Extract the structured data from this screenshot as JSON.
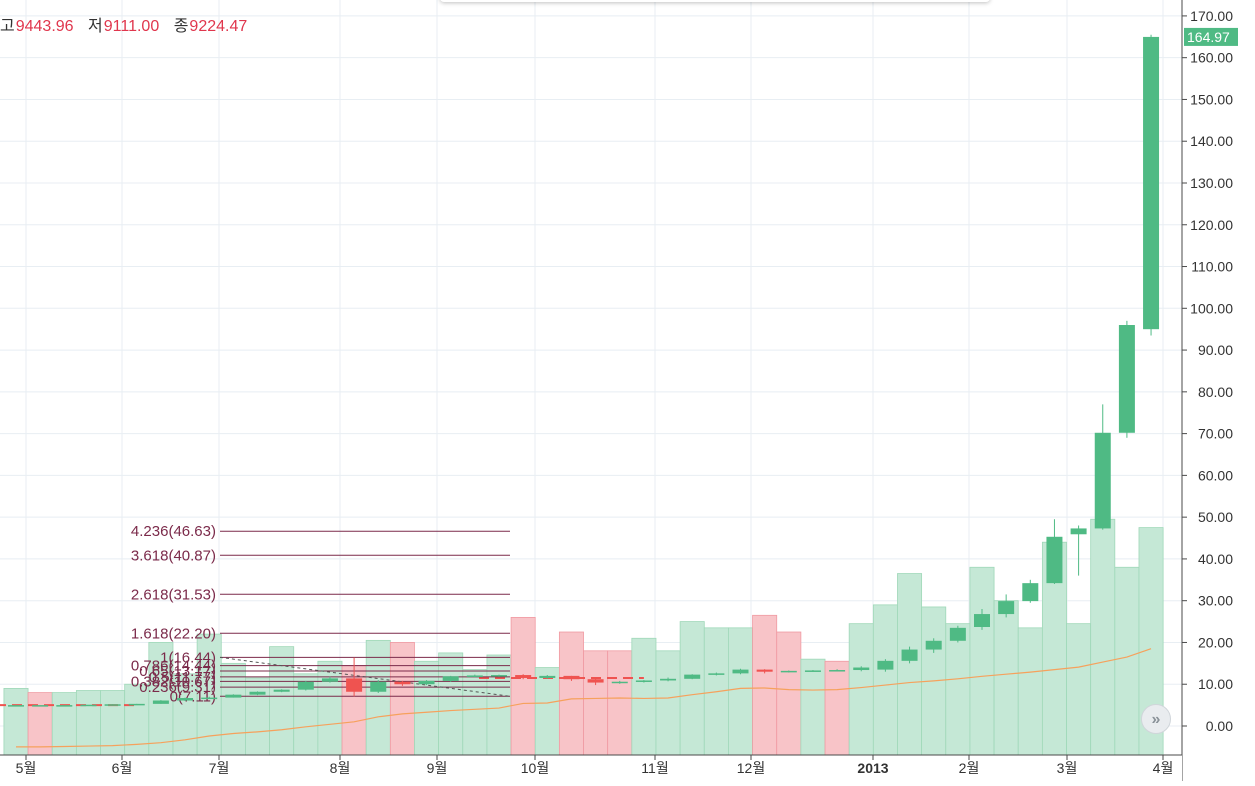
{
  "ohlc_header": {
    "high_label": "고",
    "high_value": "9443.96",
    "low_label": "저",
    "low_value": "9111.00",
    "close_label": "종",
    "close_value": "9224.47"
  },
  "last_price_tag": "164.97",
  "scroll_button_glyph": "»",
  "colors": {
    "up": "#4fba84",
    "down": "#ef5350",
    "volume_up": "#c5e8d6",
    "volume_down": "#f8c4c8",
    "ma": "#f6a15c",
    "fib": "#7b2a4a",
    "fib_text": "#7b2a4a",
    "last_price": "#4fba84",
    "grid": "#e8eef3"
  },
  "chart_data": {
    "type": "candlestick",
    "y_axis": {
      "min": -5,
      "max": 172,
      "ticks": [
        "170.00",
        "160.00",
        "150.00",
        "140.00",
        "130.00",
        "120.00",
        "110.00",
        "100.00",
        "90.00",
        "80.00",
        "70.00",
        "60.00",
        "50.00",
        "40.00",
        "30.00",
        "20.00",
        "10.00",
        "0.00"
      ]
    },
    "x_axis_labels": [
      {
        "label": "5월",
        "bold": false
      },
      {
        "label": "6월",
        "bold": false
      },
      {
        "label": "7월",
        "bold": false
      },
      {
        "label": "8월",
        "bold": false
      },
      {
        "label": "9월",
        "bold": false
      },
      {
        "label": "10월",
        "bold": false
      },
      {
        "label": "11월",
        "bold": false
      },
      {
        "label": "12월",
        "bold": false
      },
      {
        "label": "2013",
        "bold": true
      },
      {
        "label": "2월",
        "bold": false
      },
      {
        "label": "3월",
        "bold": false
      },
      {
        "label": "4월",
        "bold": false
      }
    ],
    "candles": [
      {
        "o": 5.0,
        "h": 5.0,
        "l": 5.0,
        "c": 5.0
      },
      {
        "o": 5.0,
        "h": 5.0,
        "l": 5.0,
        "c": 5.0
      },
      {
        "o": 5.0,
        "h": 5.0,
        "l": 5.0,
        "c": 5.0
      },
      {
        "o": 5.0,
        "h": 5.0,
        "l": 5.0,
        "c": 5.1
      },
      {
        "o": 5.1,
        "h": 5.2,
        "l": 5.1,
        "c": 5.2
      },
      {
        "o": 5.2,
        "h": 5.3,
        "l": 5.2,
        "c": 5.3
      },
      {
        "o": 5.3,
        "h": 6.2,
        "l": 5.3,
        "c": 6.1
      },
      {
        "o": 6.1,
        "h": 6.8,
        "l": 6.0,
        "c": 6.7
      },
      {
        "o": 6.7,
        "h": 7.0,
        "l": 6.5,
        "c": 6.8
      },
      {
        "o": 6.8,
        "h": 7.6,
        "l": 6.8,
        "c": 7.5
      },
      {
        "o": 7.5,
        "h": 8.3,
        "l": 7.4,
        "c": 8.2
      },
      {
        "o": 8.2,
        "h": 8.8,
        "l": 8.1,
        "c": 8.7
      },
      {
        "o": 8.7,
        "h": 10.8,
        "l": 8.5,
        "c": 10.6
      },
      {
        "o": 10.6,
        "h": 11.8,
        "l": 10.4,
        "c": 11.4
      },
      {
        "o": 11.4,
        "h": 16.4,
        "l": 7.1,
        "c": 8.2
      },
      {
        "o": 8.2,
        "h": 11.0,
        "l": 7.9,
        "c": 10.6
      },
      {
        "o": 10.6,
        "h": 10.8,
        "l": 9.6,
        "c": 10.0
      },
      {
        "o": 10.0,
        "h": 11.0,
        "l": 9.8,
        "c": 10.8
      },
      {
        "o": 10.8,
        "h": 12.0,
        "l": 10.6,
        "c": 11.9
      },
      {
        "o": 11.9,
        "h": 12.3,
        "l": 11.7,
        "c": 12.1
      },
      {
        "o": 12.1,
        "h": 12.3,
        "l": 11.8,
        "c": 12.2
      },
      {
        "o": 12.2,
        "h": 12.4,
        "l": 11.2,
        "c": 11.5
      },
      {
        "o": 11.5,
        "h": 12.2,
        "l": 11.3,
        "c": 12.0
      },
      {
        "o": 12.0,
        "h": 12.0,
        "l": 10.8,
        "c": 11.2
      },
      {
        "o": 11.2,
        "h": 11.6,
        "l": 9.8,
        "c": 10.4
      },
      {
        "o": 10.4,
        "h": 10.8,
        "l": 10.1,
        "c": 10.6
      },
      {
        "o": 10.6,
        "h": 11.0,
        "l": 10.4,
        "c": 10.9
      },
      {
        "o": 10.9,
        "h": 11.6,
        "l": 10.7,
        "c": 11.3
      },
      {
        "o": 11.3,
        "h": 12.4,
        "l": 11.2,
        "c": 12.3
      },
      {
        "o": 12.3,
        "h": 12.8,
        "l": 12.1,
        "c": 12.6
      },
      {
        "o": 12.6,
        "h": 13.7,
        "l": 12.4,
        "c": 13.5
      },
      {
        "o": 13.5,
        "h": 13.6,
        "l": 12.6,
        "c": 13.0
      },
      {
        "o": 13.0,
        "h": 13.3,
        "l": 12.8,
        "c": 13.2
      },
      {
        "o": 13.2,
        "h": 13.4,
        "l": 13.0,
        "c": 13.3
      },
      {
        "o": 13.3,
        "h": 13.6,
        "l": 13.2,
        "c": 13.4
      },
      {
        "o": 13.4,
        "h": 14.3,
        "l": 13.1,
        "c": 14.0
      },
      {
        "o": 13.5,
        "h": 16.0,
        "l": 13.0,
        "c": 15.6
      },
      {
        "o": 15.6,
        "h": 19.0,
        "l": 15.0,
        "c": 18.3
      },
      {
        "o": 18.3,
        "h": 21.0,
        "l": 17.5,
        "c": 20.4
      },
      {
        "o": 20.4,
        "h": 24.0,
        "l": 20.0,
        "c": 23.5
      },
      {
        "o": 23.7,
        "h": 28.0,
        "l": 23.0,
        "c": 26.8
      },
      {
        "o": 26.8,
        "h": 31.5,
        "l": 26.0,
        "c": 29.9
      },
      {
        "o": 29.9,
        "h": 35.0,
        "l": 29.5,
        "c": 34.2
      },
      {
        "o": 34.2,
        "h": 49.5,
        "l": 34.0,
        "c": 45.3
      },
      {
        "o": 45.9,
        "h": 48.0,
        "l": 36.0,
        "c": 47.3
      },
      {
        "o": 47.3,
        "h": 77.0,
        "l": 47.0,
        "c": 70.2
      },
      {
        "o": 70.2,
        "h": 97.0,
        "l": 69.0,
        "c": 96.0
      },
      {
        "o": 95.0,
        "h": 165.5,
        "l": 93.5,
        "c": 164.97
      }
    ],
    "volume": [
      {
        "v": 4.0,
        "dir": "up"
      },
      {
        "v": 3.0,
        "dir": "down"
      },
      {
        "v": 3.0,
        "dir": "up"
      },
      {
        "v": 3.5,
        "dir": "up"
      },
      {
        "v": 3.5,
        "dir": "up"
      },
      {
        "v": 5.0,
        "dir": "up"
      },
      {
        "v": 15.0,
        "dir": "up"
      },
      {
        "v": 7.5,
        "dir": "up"
      },
      {
        "v": 17.0,
        "dir": "up"
      },
      {
        "v": 10.0,
        "dir": "up"
      },
      {
        "v": 6.5,
        "dir": "up"
      },
      {
        "v": 14.0,
        "dir": "up"
      },
      {
        "v": 7.5,
        "dir": "up"
      },
      {
        "v": 10.5,
        "dir": "up"
      },
      {
        "v": 9.5,
        "dir": "down"
      },
      {
        "v": 15.5,
        "dir": "up"
      },
      {
        "v": 15.0,
        "dir": "down"
      },
      {
        "v": 10.5,
        "dir": "up"
      },
      {
        "v": 12.5,
        "dir": "up"
      },
      {
        "v": 8.5,
        "dir": "up"
      },
      {
        "v": 12.0,
        "dir": "up"
      },
      {
        "v": 21.0,
        "dir": "down"
      },
      {
        "v": 9.0,
        "dir": "up"
      },
      {
        "v": 17.5,
        "dir": "down"
      },
      {
        "v": 13.0,
        "dir": "down"
      },
      {
        "v": 13.0,
        "dir": "down"
      },
      {
        "v": 16.0,
        "dir": "up"
      },
      {
        "v": 13.0,
        "dir": "up"
      },
      {
        "v": 20.0,
        "dir": "up"
      },
      {
        "v": 18.5,
        "dir": "up"
      },
      {
        "v": 18.5,
        "dir": "up"
      },
      {
        "v": 21.5,
        "dir": "down"
      },
      {
        "v": 17.5,
        "dir": "down"
      },
      {
        "v": 11.0,
        "dir": "up"
      },
      {
        "v": 10.5,
        "dir": "down"
      },
      {
        "v": 19.5,
        "dir": "up"
      },
      {
        "v": 24.0,
        "dir": "up"
      },
      {
        "v": 31.5,
        "dir": "up"
      },
      {
        "v": 23.5,
        "dir": "up"
      },
      {
        "v": 19.5,
        "dir": "up"
      },
      {
        "v": 33.0,
        "dir": "up"
      },
      {
        "v": 25.0,
        "dir": "up"
      },
      {
        "v": 18.5,
        "dir": "up"
      },
      {
        "v": 39.0,
        "dir": "up"
      },
      {
        "v": 19.5,
        "dir": "up"
      },
      {
        "v": 44.5,
        "dir": "up"
      },
      {
        "v": 33.0,
        "dir": "up"
      },
      {
        "v": 42.5,
        "dir": "up"
      }
    ],
    "volume_ma": [
      -5.0,
      -5.0,
      -4.9,
      -4.8,
      -4.7,
      -4.4,
      -4.0,
      -3.3,
      -2.4,
      -1.8,
      -1.4,
      -0.9,
      -0.2,
      0.4,
      1.0,
      2.2,
      2.9,
      3.3,
      3.7,
      4.0,
      4.3,
      5.4,
      5.5,
      6.5,
      6.6,
      6.7,
      6.6,
      6.7,
      7.5,
      8.2,
      9.0,
      9.1,
      8.7,
      8.6,
      8.7,
      9.2,
      9.8,
      10.4,
      10.8,
      11.3,
      11.9,
      12.4,
      12.9,
      13.5,
      14.1,
      15.3,
      16.5,
      18.5
    ],
    "last_price_dashed": [
      {
        "from": 0,
        "to": 5,
        "value": 5.0,
        "color": "down"
      },
      {
        "from": 20,
        "to": 26,
        "value": 11.5,
        "color": "down"
      }
    ],
    "fibonacci": [
      {
        "label": "4.236(46.63)",
        "value": 46.63
      },
      {
        "label": "3.618(40.87)",
        "value": 40.87
      },
      {
        "label": "2.618(31.53)",
        "value": 31.53
      },
      {
        "label": "1.618(22.20)",
        "value": 22.2
      },
      {
        "label": "1(16.44)",
        "value": 16.44
      },
      {
        "label": "0.786(14.44)",
        "value": 14.44
      },
      {
        "label": "0.65(13.17)",
        "value": 13.17
      },
      {
        "label": "0.5(11.77)",
        "value": 11.77
      },
      {
        "label": "0.382(10.67)",
        "value": 10.67
      },
      {
        "label": "0.236(9.31)",
        "value": 9.31
      },
      {
        "label": "0(7.11)",
        "value": 7.11
      }
    ],
    "fib_trend": {
      "from_index": 6,
      "from_value": 16.44,
      "to_index": 20,
      "to_value": 7.11
    }
  }
}
